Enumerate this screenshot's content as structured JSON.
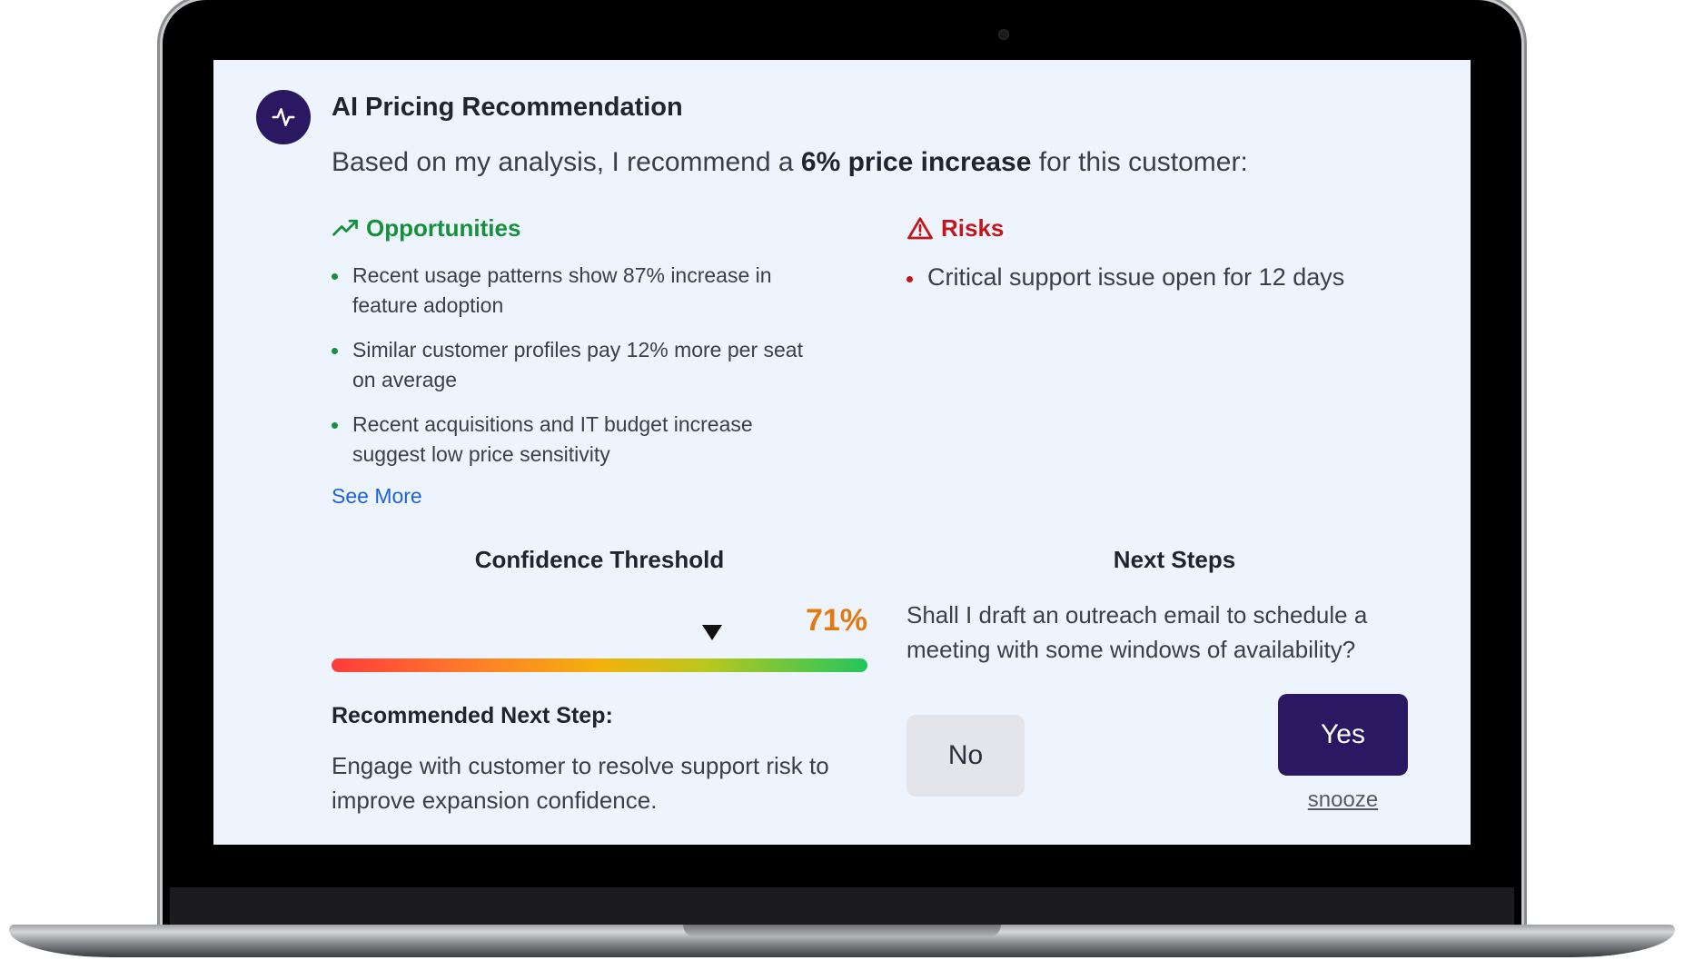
{
  "card": {
    "title": "AI Pricing Recommendation",
    "avatar_icon": "activity-pulse-icon",
    "intro_before": "Based on my analysis, I recommend a ",
    "intro_highlight": "6% price increase",
    "intro_after": " for this customer:"
  },
  "opportunities": {
    "heading": "Opportunities",
    "icon": "trending-up-icon",
    "color": "#17903d",
    "items": [
      "Recent usage patterns show 87% increase in feature adoption",
      "Similar customer profiles pay 12% more per seat on average",
      "Recent acquisitions and IT budget increase suggest low price sensitivity"
    ],
    "see_more": "See More"
  },
  "risks": {
    "heading": "Risks",
    "icon": "warning-triangle-icon",
    "color": "#c0161e",
    "items": [
      "Critical support issue open for 12 days"
    ]
  },
  "confidence": {
    "title": "Confidence Threshold",
    "value_text": "71%",
    "value_fraction": 0.71,
    "value_color": "#e07a14"
  },
  "recommended": {
    "title": "Recommended Next Step:",
    "text": "Engage with customer to resolve support risk to improve expansion confidence."
  },
  "next_steps": {
    "title": "Next Steps",
    "question": "Shall I draft an outreach email to schedule a meeting with some windows of availability?",
    "no_label": "No",
    "yes_label": "Yes",
    "snooze_label": "snooze",
    "yes_color": "#2a1863"
  }
}
